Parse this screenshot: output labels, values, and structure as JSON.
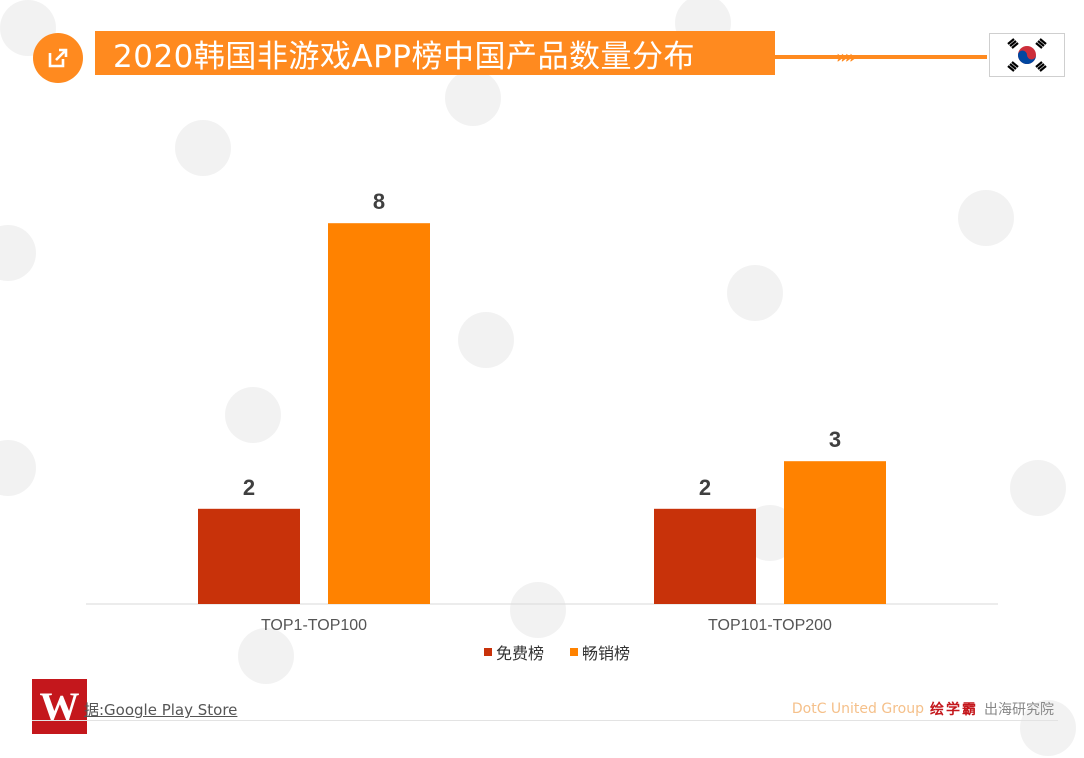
{
  "header": {
    "title": "2020韩国非游戏APP榜中国产品数量分布",
    "arrows": "»»"
  },
  "colors": {
    "accent": "#ff8a1f",
    "free": "#c8320a",
    "paid": "#ff8200"
  },
  "chart_data": {
    "type": "bar",
    "categories": [
      "TOP1-TOP100",
      "TOP101-TOP200"
    ],
    "series": [
      {
        "name": "免费榜",
        "values": [
          2,
          2
        ]
      },
      {
        "name": "畅销榜",
        "values": [
          8,
          3
        ]
      }
    ],
    "ylim": [
      0,
      10
    ],
    "grid": false,
    "legend_position": "bottom"
  },
  "legend": {
    "items": [
      "免费榜",
      "畅销榜"
    ]
  },
  "footer": {
    "logo_letter": "W",
    "source": "据:Google Play Store",
    "brand": "DotC United Group",
    "logo_text": "绘学霸",
    "institute": "出海研究院"
  }
}
